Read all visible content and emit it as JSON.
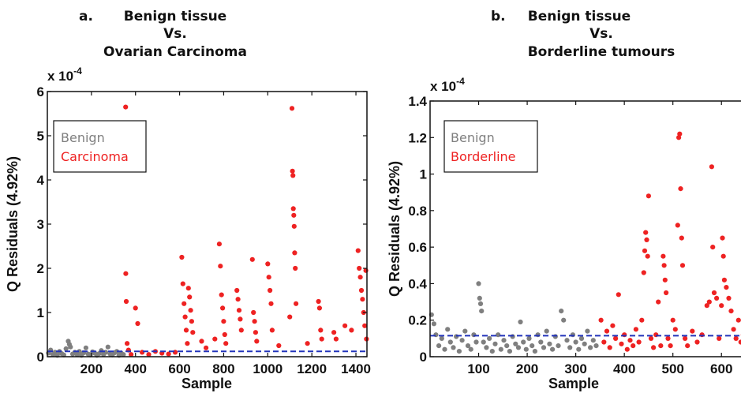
{
  "chart_data": [
    {
      "type": "scatter",
      "panel_label": "a.",
      "title_lines": [
        "Benign tissue",
        "Vs.",
        "Ovarian Carcinoma"
      ],
      "xlabel": "Sample",
      "ylabel": "Q Residuals (4.92%)",
      "exponent_label": "x 10",
      "exponent_power": "-4",
      "xlim": [
        0,
        1450
      ],
      "ylim": [
        0,
        6
      ],
      "xticks": [
        200,
        400,
        600,
        800,
        1000,
        1200,
        1400
      ],
      "xtick_labels": [
        "200",
        "400",
        "600",
        "800",
        "1000",
        "1200",
        "1400"
      ],
      "yticks": [
        0,
        1,
        2,
        3,
        4,
        5,
        6
      ],
      "ytick_labels": [
        "0",
        "1",
        "2",
        "3",
        "4",
        "5",
        "6"
      ],
      "threshold": 0.12,
      "legend": {
        "placement": "top-left",
        "entries": [
          "Benign",
          "Carcinoma"
        ]
      },
      "colors": {
        "Benign": "#7f7f7f",
        "Carcinoma": "#ee2222",
        "threshold": "#2233bb"
      },
      "series": [
        {
          "name": "Benign",
          "points": [
            [
              5,
              0.08
            ],
            [
              15,
              0.15
            ],
            [
              25,
              0.05
            ],
            [
              35,
              0.1
            ],
            [
              45,
              0.03
            ],
            [
              55,
              0.12
            ],
            [
              65,
              0.07
            ],
            [
              75,
              0.04
            ],
            [
              85,
              0.18
            ],
            [
              95,
              0.35
            ],
            [
              100,
              0.28
            ],
            [
              105,
              0.22
            ],
            [
              115,
              0.06
            ],
            [
              125,
              0.1
            ],
            [
              135,
              0.05
            ],
            [
              145,
              0.12
            ],
            [
              155,
              0.03
            ],
            [
              165,
              0.09
            ],
            [
              175,
              0.2
            ],
            [
              185,
              0.06
            ],
            [
              195,
              0.04
            ],
            [
              205,
              0.11
            ],
            [
              215,
              0.08
            ],
            [
              225,
              0.03
            ],
            [
              235,
              0.07
            ],
            [
              245,
              0.14
            ],
            [
              255,
              0.05
            ],
            [
              265,
              0.1
            ],
            [
              275,
              0.22
            ],
            [
              285,
              0.06
            ],
            [
              295,
              0.04
            ],
            [
              305,
              0.09
            ],
            [
              315,
              0.12
            ],
            [
              325,
              0.03
            ],
            [
              335,
              0.08
            ],
            [
              345,
              0.05
            ]
          ]
        },
        {
          "name": "Carcinoma",
          "points": [
            [
              355,
              5.65
            ],
            [
              356,
              1.88
            ],
            [
              358,
              1.25
            ],
            [
              362,
              0.3
            ],
            [
              368,
              0.15
            ],
            [
              380,
              0.05
            ],
            [
              400,
              1.1
            ],
            [
              410,
              0.75
            ],
            [
              430,
              0.1
            ],
            [
              460,
              0.05
            ],
            [
              490,
              0.12
            ],
            [
              520,
              0.08
            ],
            [
              550,
              0.06
            ],
            [
              580,
              0.1
            ],
            [
              610,
              2.25
            ],
            [
              615,
              1.65
            ],
            [
              620,
              1.2
            ],
            [
              625,
              0.9
            ],
            [
              630,
              0.6
            ],
            [
              635,
              0.3
            ],
            [
              640,
              1.55
            ],
            [
              645,
              1.35
            ],
            [
              650,
              1.05
            ],
            [
              655,
              0.8
            ],
            [
              660,
              0.55
            ],
            [
              700,
              0.35
            ],
            [
              720,
              0.2
            ],
            [
              760,
              0.4
            ],
            [
              780,
              2.55
            ],
            [
              785,
              2.05
            ],
            [
              790,
              1.4
            ],
            [
              795,
              1.1
            ],
            [
              800,
              0.8
            ],
            [
              805,
              0.5
            ],
            [
              810,
              0.3
            ],
            [
              860,
              1.5
            ],
            [
              865,
              1.3
            ],
            [
              870,
              1.05
            ],
            [
              875,
              0.85
            ],
            [
              880,
              0.6
            ],
            [
              930,
              2.2
            ],
            [
              935,
              1.0
            ],
            [
              940,
              0.8
            ],
            [
              945,
              0.55
            ],
            [
              950,
              0.35
            ],
            [
              1000,
              2.1
            ],
            [
              1005,
              1.8
            ],
            [
              1010,
              1.5
            ],
            [
              1015,
              1.2
            ],
            [
              1020,
              0.6
            ],
            [
              1050,
              0.25
            ],
            [
              1100,
              0.9
            ],
            [
              1110,
              5.62
            ],
            [
              1112,
              4.2
            ],
            [
              1114,
              4.1
            ],
            [
              1116,
              3.35
            ],
            [
              1118,
              3.2
            ],
            [
              1120,
              2.95
            ],
            [
              1122,
              2.35
            ],
            [
              1125,
              2.0
            ],
            [
              1128,
              1.2
            ],
            [
              1180,
              0.3
            ],
            [
              1230,
              1.25
            ],
            [
              1235,
              1.1
            ],
            [
              1240,
              0.6
            ],
            [
              1245,
              0.4
            ],
            [
              1300,
              0.55
            ],
            [
              1310,
              0.4
            ],
            [
              1350,
              0.7
            ],
            [
              1380,
              0.6
            ],
            [
              1410,
              2.4
            ],
            [
              1415,
              2.0
            ],
            [
              1420,
              1.8
            ],
            [
              1425,
              1.5
            ],
            [
              1430,
              1.3
            ],
            [
              1435,
              1.0
            ],
            [
              1440,
              0.7
            ],
            [
              1445,
              1.95
            ],
            [
              1448,
              0.4
            ]
          ]
        }
      ]
    },
    {
      "type": "scatter",
      "panel_label": "b.",
      "title_lines": [
        "Benign tissue",
        "Vs.",
        "Borderline tumours"
      ],
      "xlabel": "Sample",
      "ylabel": "Q Residuals (4.92%)",
      "exponent_label": "x 10",
      "exponent_power": "-4",
      "xlim": [
        0,
        650
      ],
      "ylim": [
        0,
        1.4
      ],
      "xticks": [
        100,
        200,
        300,
        400,
        500,
        600
      ],
      "xtick_labels": [
        "100",
        "200",
        "300",
        "400",
        "500",
        "600"
      ],
      "yticks": [
        0,
        0.2,
        0.4,
        0.6,
        0.8,
        1.0,
        1.2,
        1.4
      ],
      "ytick_labels": [
        "0",
        "0.2",
        "0.4",
        "0.6",
        "0.8",
        "1",
        "1.2",
        "1.4"
      ],
      "threshold": 0.115,
      "legend": {
        "placement": "top-left",
        "entries": [
          "Benign",
          "Borderline"
        ]
      },
      "colors": {
        "Benign": "#7f7f7f",
        "Borderline": "#ee2222",
        "threshold": "#2233bb"
      },
      "series": [
        {
          "name": "Benign",
          "points": [
            [
              3,
              0.23
            ],
            [
              8,
              0.18
            ],
            [
              12,
              0.12
            ],
            [
              18,
              0.06
            ],
            [
              24,
              0.1
            ],
            [
              30,
              0.04
            ],
            [
              36,
              0.15
            ],
            [
              42,
              0.08
            ],
            [
              48,
              0.05
            ],
            [
              54,
              0.11
            ],
            [
              60,
              0.03
            ],
            [
              66,
              0.09
            ],
            [
              72,
              0.14
            ],
            [
              78,
              0.06
            ],
            [
              84,
              0.04
            ],
            [
              90,
              0.12
            ],
            [
              95,
              0.08
            ],
            [
              100,
              0.4
            ],
            [
              102,
              0.32
            ],
            [
              104,
              0.29
            ],
            [
              106,
              0.25
            ],
            [
              110,
              0.08
            ],
            [
              116,
              0.05
            ],
            [
              122,
              0.1
            ],
            [
              128,
              0.03
            ],
            [
              134,
              0.07
            ],
            [
              140,
              0.12
            ],
            [
              146,
              0.04
            ],
            [
              152,
              0.09
            ],
            [
              158,
              0.06
            ],
            [
              164,
              0.03
            ],
            [
              170,
              0.11
            ],
            [
              176,
              0.07
            ],
            [
              182,
              0.05
            ],
            [
              186,
              0.19
            ],
            [
              192,
              0.08
            ],
            [
              198,
              0.04
            ],
            [
              204,
              0.1
            ],
            [
              210,
              0.06
            ],
            [
              216,
              0.03
            ],
            [
              222,
              0.12
            ],
            [
              228,
              0.08
            ],
            [
              234,
              0.05
            ],
            [
              240,
              0.14
            ],
            [
              246,
              0.07
            ],
            [
              252,
              0.04
            ],
            [
              258,
              0.11
            ],
            [
              264,
              0.06
            ],
            [
              270,
              0.25
            ],
            [
              275,
              0.2
            ],
            [
              282,
              0.09
            ],
            [
              288,
              0.05
            ],
            [
              294,
              0.12
            ],
            [
              300,
              0.08
            ],
            [
              306,
              0.04
            ],
            [
              312,
              0.1
            ],
            [
              318,
              0.07
            ],
            [
              324,
              0.14
            ],
            [
              330,
              0.05
            ],
            [
              336,
              0.09
            ],
            [
              342,
              0.06
            ]
          ]
        },
        {
          "name": "Borderline",
          "points": [
            [
              352,
              0.2
            ],
            [
              358,
              0.08
            ],
            [
              364,
              0.14
            ],
            [
              370,
              0.05
            ],
            [
              376,
              0.17
            ],
            [
              382,
              0.1
            ],
            [
              388,
              0.34
            ],
            [
              394,
              0.07
            ],
            [
              400,
              0.12
            ],
            [
              406,
              0.04
            ],
            [
              412,
              0.09
            ],
            [
              418,
              0.06
            ],
            [
              424,
              0.15
            ],
            [
              430,
              0.08
            ],
            [
              436,
              0.2
            ],
            [
              440,
              0.46
            ],
            [
              442,
              0.58
            ],
            [
              444,
              0.68
            ],
            [
              446,
              0.64
            ],
            [
              448,
              0.55
            ],
            [
              450,
              0.88
            ],
            [
              455,
              0.1
            ],
            [
              460,
              0.05
            ],
            [
              465,
              0.12
            ],
            [
              470,
              0.3
            ],
            [
              475,
              0.06
            ],
            [
              480,
              0.55
            ],
            [
              482,
              0.5
            ],
            [
              484,
              0.42
            ],
            [
              486,
              0.35
            ],
            [
              490,
              0.1
            ],
            [
              495,
              0.06
            ],
            [
              500,
              0.2
            ],
            [
              505,
              0.15
            ],
            [
              510,
              0.72
            ],
            [
              512,
              1.2
            ],
            [
              514,
              1.22
            ],
            [
              516,
              0.92
            ],
            [
              518,
              0.65
            ],
            [
              520,
              0.5
            ],
            [
              525,
              0.1
            ],
            [
              530,
              0.06
            ],
            [
              540,
              0.14
            ],
            [
              550,
              0.08
            ],
            [
              560,
              0.12
            ],
            [
              570,
              0.28
            ],
            [
              575,
              0.3
            ],
            [
              580,
              1.04
            ],
            [
              582,
              0.6
            ],
            [
              585,
              0.35
            ],
            [
              590,
              0.32
            ],
            [
              595,
              0.1
            ],
            [
              600,
              0.28
            ],
            [
              602,
              0.65
            ],
            [
              604,
              0.55
            ],
            [
              606,
              0.42
            ],
            [
              610,
              0.38
            ],
            [
              615,
              0.32
            ],
            [
              620,
              0.25
            ],
            [
              625,
              0.15
            ],
            [
              630,
              0.1
            ],
            [
              635,
              0.2
            ],
            [
              640,
              0.08
            ],
            [
              645,
              0.12
            ]
          ]
        }
      ]
    }
  ]
}
